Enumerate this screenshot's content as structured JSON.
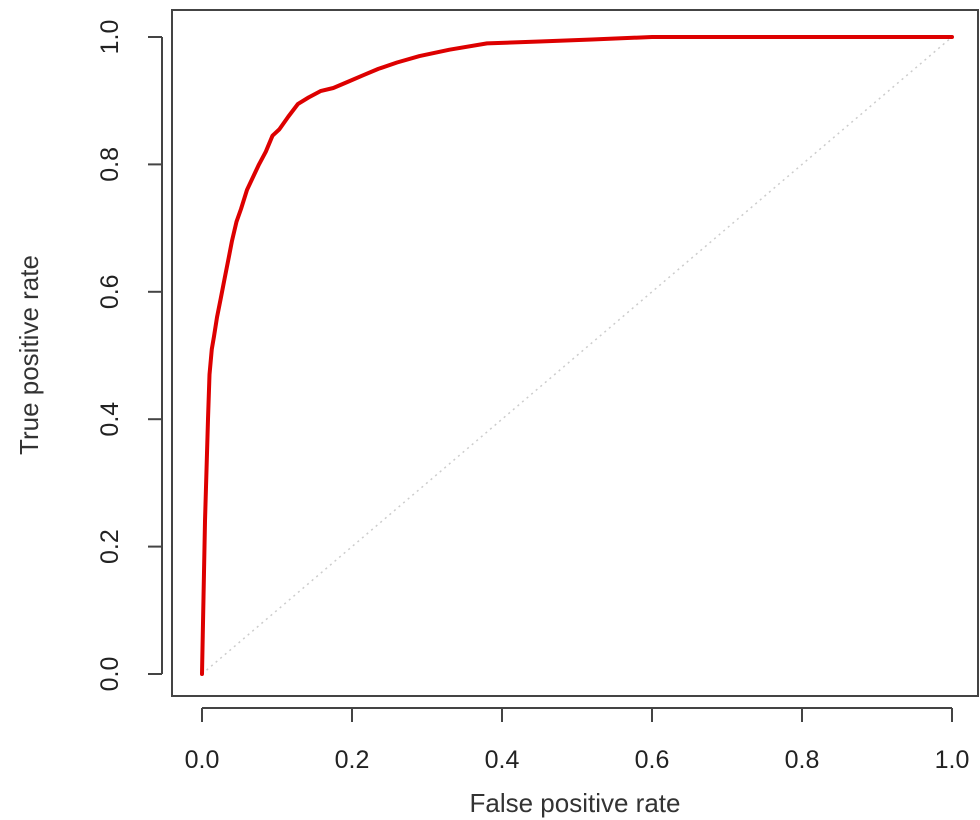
{
  "chart_data": {
    "type": "line",
    "xlabel": "False positive rate",
    "ylabel": "True positive rate",
    "xlim": [
      0.0,
      1.0
    ],
    "ylim": [
      0.0,
      1.0
    ],
    "x_ticks": [
      "0.0",
      "0.2",
      "0.4",
      "0.6",
      "0.8",
      "1.0"
    ],
    "y_ticks": [
      "0.0",
      "0.2",
      "0.4",
      "0.6",
      "0.8",
      "1.0"
    ],
    "grid": false,
    "legend": "none",
    "series": [
      {
        "color": "#dd0000",
        "x": [
          0.0,
          0.002,
          0.004,
          0.006,
          0.008,
          0.01,
          0.013,
          0.016,
          0.02,
          0.025,
          0.03,
          0.035,
          0.04,
          0.046,
          0.052,
          0.06,
          0.068,
          0.076,
          0.085,
          0.094,
          0.103,
          0.115,
          0.128,
          0.142,
          0.158,
          0.175,
          0.195,
          0.215,
          0.235,
          0.26,
          0.29,
          0.33,
          0.38,
          0.45,
          0.52,
          0.6,
          0.7,
          0.8,
          0.9,
          1.0
        ],
        "y": [
          0.0,
          0.12,
          0.24,
          0.32,
          0.4,
          0.47,
          0.51,
          0.53,
          0.56,
          0.59,
          0.62,
          0.65,
          0.68,
          0.71,
          0.73,
          0.76,
          0.78,
          0.8,
          0.82,
          0.845,
          0.855,
          0.875,
          0.895,
          0.905,
          0.915,
          0.92,
          0.93,
          0.94,
          0.95,
          0.96,
          0.97,
          0.98,
          0.99,
          0.993,
          0.996,
          1.0,
          1.0,
          1.0,
          1.0,
          1.0
        ]
      },
      {
        "style": "dotted",
        "color": "#cccccc",
        "x": [
          0.0,
          1.0
        ],
        "y": [
          0.0,
          1.0
        ]
      }
    ]
  }
}
